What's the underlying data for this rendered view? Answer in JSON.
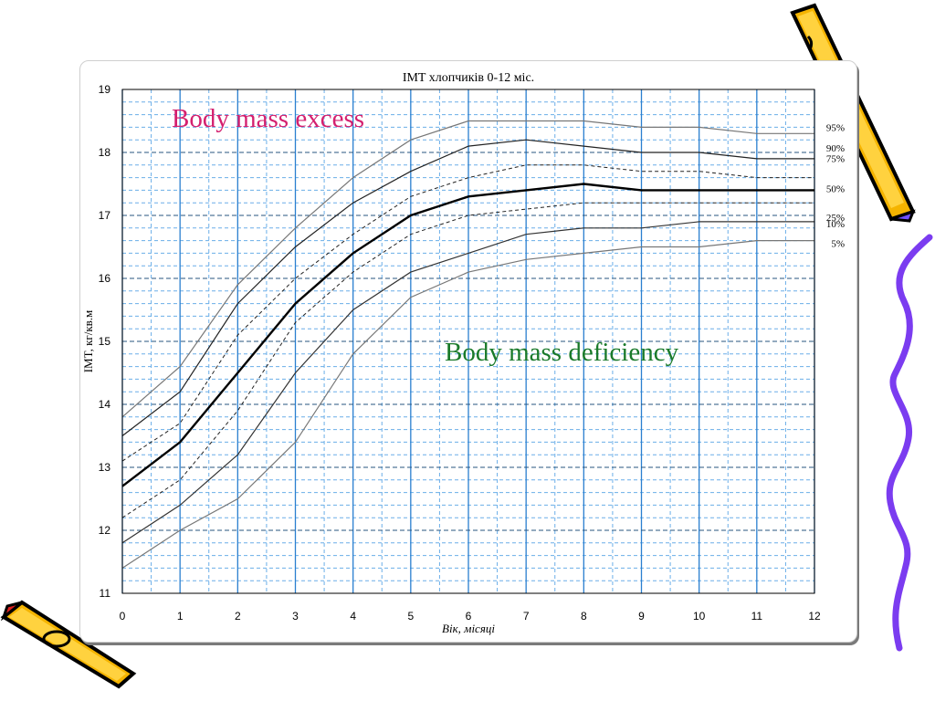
{
  "chart_data": {
    "type": "line",
    "title": "IMT хлопчиків 0-12 міс.",
    "xlabel": "Вік, місяці",
    "ylabel": "IMT, кг/кв.м",
    "xlim": [
      0,
      12
    ],
    "ylim": [
      11,
      19
    ],
    "x": [
      0,
      1,
      2,
      3,
      4,
      5,
      6,
      7,
      8,
      9,
      10,
      11,
      12
    ],
    "x_ticks": [
      "0",
      "1",
      "2",
      "3",
      "4",
      "5",
      "6",
      "7",
      "8",
      "9",
      "10",
      "11",
      "12"
    ],
    "y_ticks": [
      "11",
      "12",
      "13",
      "14",
      "15",
      "16",
      "17",
      "18",
      "19"
    ],
    "grid": true,
    "series": [
      {
        "name": "95%",
        "values": [
          13.8,
          14.6,
          15.9,
          16.8,
          17.6,
          18.2,
          18.5,
          18.5,
          18.5,
          18.4,
          18.4,
          18.3,
          18.3
        ]
      },
      {
        "name": "90%",
        "values": [
          13.5,
          14.2,
          15.6,
          16.5,
          17.2,
          17.7,
          18.1,
          18.2,
          18.1,
          18.0,
          18.0,
          17.9,
          17.9
        ]
      },
      {
        "name": "75%",
        "values": [
          13.1,
          13.7,
          15.1,
          16.0,
          16.7,
          17.3,
          17.6,
          17.8,
          17.8,
          17.7,
          17.7,
          17.6,
          17.6
        ]
      },
      {
        "name": "50%",
        "values": [
          12.7,
          13.4,
          14.5,
          15.6,
          16.4,
          17.0,
          17.3,
          17.4,
          17.5,
          17.4,
          17.4,
          17.4,
          17.4
        ]
      },
      {
        "name": "25%",
        "values": [
          12.2,
          12.8,
          13.9,
          15.3,
          16.1,
          16.7,
          17.0,
          17.1,
          17.2,
          17.2,
          17.2,
          17.2,
          17.2
        ]
      },
      {
        "name": "10%",
        "values": [
          11.8,
          12.4,
          13.2,
          14.5,
          15.5,
          16.1,
          16.4,
          16.7,
          16.8,
          16.8,
          16.9,
          16.9,
          16.9
        ]
      },
      {
        "name": "5%",
        "values": [
          11.4,
          12.0,
          12.5,
          13.4,
          14.8,
          15.7,
          16.1,
          16.3,
          16.4,
          16.5,
          16.5,
          16.6,
          16.6
        ]
      }
    ],
    "annotations": {
      "excess": "Body mass excess",
      "deficiency": "Body mass deficiency"
    }
  },
  "colors": {
    "excess": "#d4206f",
    "deficiency": "#1a7a2a",
    "major_grid": "#2a7fd0",
    "minor_grid": "#6aaee8"
  }
}
